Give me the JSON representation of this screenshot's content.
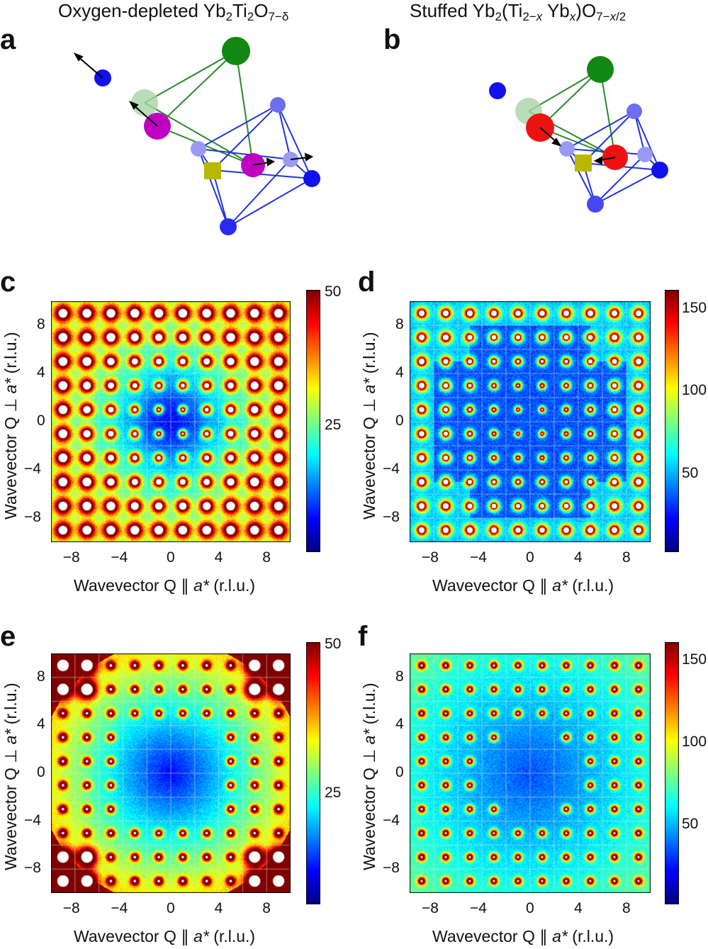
{
  "titles": {
    "left": {
      "pre": "Oxygen-depleted Yb",
      "s1": "2",
      "mid": "Ti",
      "s2": "2",
      "mid2": "O",
      "s3": "7−δ"
    },
    "right": {
      "pre": "Stuffed Yb",
      "s1": "2",
      "mid": "(Ti",
      "s2": "2−",
      "sx": "x",
      "mid2": "Yb",
      "sxx": "x",
      "mid3": ")O",
      "s3": "7−",
      "s3x": "x",
      "s3end": "/2"
    }
  },
  "panels": {
    "a": "a",
    "b": "b",
    "c": "c",
    "d": "d",
    "e": "e",
    "f": "f"
  },
  "axis": {
    "xlabel_pre": "Wavevector Q ∥ ",
    "ylabel_pre": "Wavevector Q ⊥ ",
    "astar": "a*",
    "units": " (r.l.u.)",
    "ticks": [
      "−8",
      "−4",
      "0",
      "4",
      "8"
    ]
  },
  "colors": {
    "oxygen_top": "#118811",
    "oxygen_ghost": "#a8d4a8",
    "magenta_site": "#c000c0",
    "red_site": "#ee1111",
    "blue_site": "#1111ee",
    "vacancy": "#b8b800",
    "tet_edge": "#2a8a2a",
    "oct_edge": "#2233dd"
  },
  "chart_data": [
    {
      "panel": "c",
      "type": "heatmap",
      "xlabel": "Wavevector Q ∥ a* (r.l.u.)",
      "ylabel": "Wavevector Q ⊥ a* (r.l.u.)",
      "xlim": [
        -10,
        10
      ],
      "ylim": [
        -10,
        10
      ],
      "xticks": [
        -8,
        -4,
        0,
        4,
        8
      ],
      "yticks": [
        -8,
        -4,
        0,
        4,
        8
      ],
      "colorbar": {
        "ticks": [
          25,
          50
        ],
        "max": 50
      }
    },
    {
      "panel": "d",
      "type": "heatmap",
      "xlabel": "Wavevector Q ∥ a* (r.l.u.)",
      "ylabel": "Wavevector Q ⊥ a* (r.l.u.)",
      "xlim": [
        -10,
        10
      ],
      "ylim": [
        -10,
        10
      ],
      "xticks": [
        -8,
        -4,
        0,
        4,
        8
      ],
      "yticks": [
        -8,
        -4,
        0,
        4,
        8
      ],
      "colorbar": {
        "ticks": [
          50,
          100,
          150
        ],
        "max": 160
      }
    },
    {
      "panel": "e",
      "type": "heatmap",
      "xlabel": "Wavevector Q ∥ a* (r.l.u.)",
      "ylabel": "Wavevector Q ⊥ a* (r.l.u.)",
      "xlim": [
        -10,
        10
      ],
      "ylim": [
        -10,
        10
      ],
      "xticks": [
        -8,
        -4,
        0,
        4,
        8
      ],
      "yticks": [
        -8,
        -4,
        0,
        4,
        8
      ],
      "colorbar": {
        "ticks": [
          25,
          50
        ],
        "max": 50
      }
    },
    {
      "panel": "f",
      "type": "heatmap",
      "xlabel": "Wavevector Q ∥ a* (r.l.u.)",
      "ylabel": "Wavevector Q ⊥ a* (r.l.u.)",
      "xlim": [
        -10,
        10
      ],
      "ylim": [
        -10,
        10
      ],
      "xticks": [
        -8,
        -4,
        0,
        4,
        8
      ],
      "yticks": [
        -8,
        -4,
        0,
        4,
        8
      ],
      "colorbar": {
        "ticks": [
          50,
          100,
          150
        ],
        "max": 160
      }
    }
  ]
}
